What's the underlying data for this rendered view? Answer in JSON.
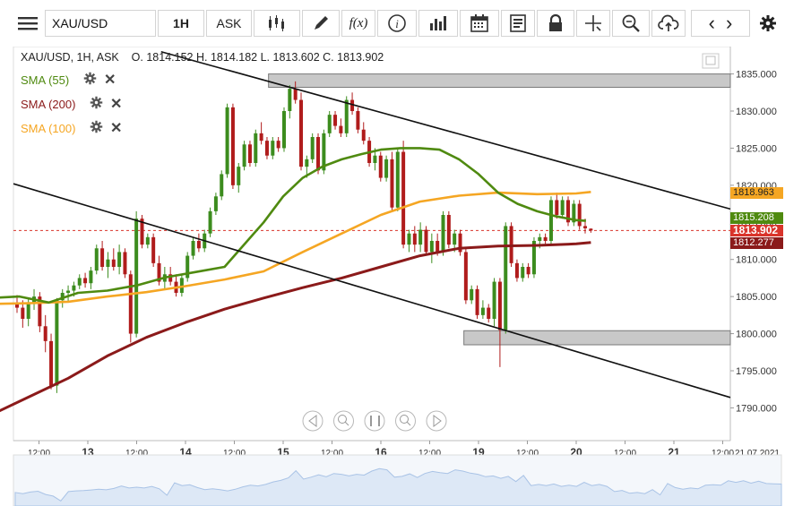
{
  "toolbar": {
    "symbol": "XAU/USD",
    "timeframe": "1H",
    "price_side": "ASK"
  },
  "header": {
    "pair": "XAU/USD, 1H, ASK",
    "open_label": "O.",
    "open": "1814.152",
    "high_label": "H.",
    "high": "1814.182",
    "low_label": "L.",
    "low": "1813.602",
    "close_label": "C.",
    "close": "1813.902"
  },
  "indicators": [
    {
      "label": "SMA (55)",
      "color": "#4f8a10"
    },
    {
      "label": "SMA (200)",
      "color": "#8b1a1a"
    },
    {
      "label": "SMA (100)",
      "color": "#f5a623"
    }
  ],
  "price_tags": [
    {
      "value": "1818.963",
      "color": "#f5a623",
      "text_color": "#222222"
    },
    {
      "value": "1815.208",
      "color": "#4f8a10",
      "text_color": "#ffffff"
    },
    {
      "value": "1813.902",
      "color": "#d9342b",
      "text_color": "#ffffff"
    },
    {
      "value": "1812.277",
      "color": "#8b1a1a",
      "text_color": "#ffffff"
    }
  ],
  "chart_data": {
    "type": "candlestick",
    "ylim": [
      1788,
      1837
    ],
    "y_ticks": [
      "1835.000",
      "1830.000",
      "1825.000",
      "1820.000",
      "1815.000",
      "1810.000",
      "1805.000",
      "1800.000",
      "1795.000",
      "1790.000"
    ],
    "y_tick_values": [
      1835,
      1830,
      1825,
      1820,
      1815,
      1810,
      1805,
      1800,
      1795,
      1790
    ],
    "x_ticks": [
      "12:00",
      "13",
      "12:00",
      "14",
      "12:00",
      "15",
      "12:00",
      "16",
      "12:00",
      "19",
      "12:00",
      "20",
      "12:00",
      "21",
      "12:00"
    ],
    "x_tick_positions": [
      0.5,
      1,
      1.5,
      2,
      2.5,
      3,
      3.5,
      4,
      4.5,
      5,
      5.5,
      6,
      6.5,
      7,
      7.5
    ],
    "date_label": "21.07.2021",
    "candle_color_up": "#3c8c1e",
    "candle_color_down": "#b01c1c",
    "current_price": 1813.902,
    "resistance_zones": [
      {
        "from_x": 2.85,
        "to_x": 7.6,
        "low": 1833.2,
        "high": 1835.0
      },
      {
        "from_x": 4.85,
        "to_x": 7.6,
        "low": 1798.5,
        "high": 1800.4
      }
    ],
    "trendlines": [
      {
        "x1": 1.75,
        "y1": 1838.0,
        "x2": 7.6,
        "y2": 1816.8
      },
      {
        "x1": -0.1,
        "y1": 1820.2,
        "x2": 7.6,
        "y2": 1791.4
      }
    ],
    "sma55": [
      [
        0,
        1804.8
      ],
      [
        0.3,
        1805
      ],
      [
        0.6,
        1804.2
      ],
      [
        0.9,
        1805.5
      ],
      [
        1.2,
        1805.8
      ],
      [
        1.5,
        1806.5
      ],
      [
        1.8,
        1807.6
      ],
      [
        2.1,
        1808.3
      ],
      [
        2.4,
        1809
      ],
      [
        2.6,
        1812
      ],
      [
        2.8,
        1815
      ],
      [
        3.0,
        1818.5
      ],
      [
        3.2,
        1821
      ],
      [
        3.4,
        1822.5
      ],
      [
        3.6,
        1823.5
      ],
      [
        3.8,
        1824.2
      ],
      [
        4.0,
        1824.8
      ],
      [
        4.2,
        1825
      ],
      [
        4.4,
        1825
      ],
      [
        4.6,
        1824.8
      ],
      [
        4.8,
        1823.5
      ],
      [
        5.0,
        1821.5
      ],
      [
        5.2,
        1819
      ],
      [
        5.4,
        1817.5
      ],
      [
        5.6,
        1816.5
      ],
      [
        5.8,
        1815.8
      ],
      [
        6.0,
        1815.3
      ],
      [
        6.1,
        1815.2
      ]
    ],
    "sma100": [
      [
        0,
        1804
      ],
      [
        0.4,
        1804.1
      ],
      [
        0.8,
        1804.3
      ],
      [
        1.2,
        1805
      ],
      [
        1.6,
        1805.6
      ],
      [
        2.0,
        1806.4
      ],
      [
        2.4,
        1807.3
      ],
      [
        2.8,
        1808.4
      ],
      [
        3.0,
        1809.7
      ],
      [
        3.2,
        1811
      ],
      [
        3.6,
        1813.5
      ],
      [
        4.0,
        1816
      ],
      [
        4.4,
        1817.8
      ],
      [
        4.8,
        1818.6
      ],
      [
        5.2,
        1819
      ],
      [
        5.6,
        1818.8
      ],
      [
        6.0,
        1818.9
      ],
      [
        6.15,
        1819.1
      ]
    ],
    "sma200": [
      [
        0,
        1789
      ],
      [
        0.4,
        1791.5
      ],
      [
        0.8,
        1794
      ],
      [
        1.2,
        1797
      ],
      [
        1.6,
        1799.5
      ],
      [
        2.0,
        1801.5
      ],
      [
        2.4,
        1803.3
      ],
      [
        2.8,
        1804.8
      ],
      [
        3.2,
        1806.2
      ],
      [
        3.6,
        1807.5
      ],
      [
        4.0,
        1809
      ],
      [
        4.4,
        1810.5
      ],
      [
        4.8,
        1811.5
      ],
      [
        5.2,
        1811.8
      ],
      [
        5.6,
        1811.9
      ],
      [
        6.0,
        1812.1
      ],
      [
        6.15,
        1812.3
      ]
    ],
    "candles": [
      [
        1804.0,
        1805.2,
        1802.8,
        1803.5
      ],
      [
        1803.5,
        1804.5,
        1800.8,
        1802.0
      ],
      [
        1802.0,
        1804.8,
        1801.0,
        1804.0
      ],
      [
        1804.0,
        1806.0,
        1803.2,
        1805.0
      ],
      [
        1805.0,
        1805.6,
        1800.2,
        1801.0
      ],
      [
        1801.0,
        1802.5,
        1797.5,
        1799.0
      ],
      [
        1799.0,
        1800.0,
        1792.5,
        1793.0
      ],
      [
        1793.0,
        1804.8,
        1792.0,
        1804.5
      ],
      [
        1804.5,
        1806.0,
        1803.5,
        1805.5
      ],
      [
        1805.5,
        1806.5,
        1804.2,
        1805.8
      ],
      [
        1805.8,
        1807.0,
        1805.0,
        1806.5
      ],
      [
        1806.5,
        1808.0,
        1806.0,
        1807.5
      ],
      [
        1807.5,
        1808.2,
        1806.2,
        1806.8
      ],
      [
        1806.8,
        1809.0,
        1806.0,
        1808.5
      ],
      [
        1808.5,
        1812.0,
        1808.0,
        1811.5
      ],
      [
        1811.5,
        1812.5,
        1808.5,
        1809.0
      ],
      [
        1809.0,
        1811.0,
        1807.5,
        1810.0
      ],
      [
        1810.0,
        1811.5,
        1808.5,
        1809.0
      ],
      [
        1809.0,
        1812.0,
        1808.0,
        1811.0
      ],
      [
        1811.0,
        1811.5,
        1807.5,
        1808.0
      ],
      [
        1808.0,
        1808.5,
        1798.8,
        1800.0
      ],
      [
        1800.0,
        1816.5,
        1799.5,
        1815.5
      ],
      [
        1815.5,
        1816.0,
        1811.5,
        1812.0
      ],
      [
        1812.0,
        1813.5,
        1811.5,
        1813.0
      ],
      [
        1813.0,
        1813.5,
        1809.0,
        1809.5
      ],
      [
        1809.5,
        1810.5,
        1806.5,
        1807.0
      ],
      [
        1807.0,
        1809.0,
        1806.0,
        1808.0
      ],
      [
        1808.0,
        1809.0,
        1806.5,
        1807.0
      ],
      [
        1807.0,
        1808.0,
        1805.0,
        1805.5
      ],
      [
        1805.5,
        1808.0,
        1805.0,
        1807.5
      ],
      [
        1807.5,
        1811.0,
        1807.0,
        1810.5
      ],
      [
        1810.5,
        1813.0,
        1810.0,
        1812.5
      ],
      [
        1812.5,
        1813.5,
        1811.0,
        1811.5
      ],
      [
        1811.5,
        1814.0,
        1811.0,
        1813.5
      ],
      [
        1813.5,
        1817.0,
        1813.0,
        1816.5
      ],
      [
        1816.5,
        1819.0,
        1816.0,
        1818.5
      ],
      [
        1818.5,
        1822.0,
        1818.0,
        1821.5
      ],
      [
        1821.5,
        1831.0,
        1821.0,
        1830.5
      ],
      [
        1830.5,
        1831.0,
        1819.5,
        1820.0
      ],
      [
        1820.0,
        1823.0,
        1819.0,
        1822.5
      ],
      [
        1822.5,
        1826.0,
        1822.0,
        1825.5
      ],
      [
        1825.5,
        1826.0,
        1822.5,
        1823.0
      ],
      [
        1823.0,
        1827.5,
        1822.5,
        1827.0
      ],
      [
        1827.0,
        1828.5,
        1825.5,
        1826.0
      ],
      [
        1826.0,
        1826.5,
        1823.5,
        1824.0
      ],
      [
        1824.0,
        1826.5,
        1823.5,
        1826.0
      ],
      [
        1826.0,
        1826.5,
        1824.5,
        1825.0
      ],
      [
        1825.0,
        1830.5,
        1824.5,
        1830.0
      ],
      [
        1830.0,
        1833.5,
        1829.0,
        1833.0
      ],
      [
        1833.0,
        1834.0,
        1831.0,
        1831.5
      ],
      [
        1831.5,
        1832.5,
        1822.0,
        1822.5
      ],
      [
        1822.5,
        1824.0,
        1821.0,
        1823.5
      ],
      [
        1823.5,
        1827.0,
        1823.0,
        1826.5
      ],
      [
        1826.5,
        1827.0,
        1821.5,
        1822.0
      ],
      [
        1822.0,
        1827.5,
        1821.5,
        1827.0
      ],
      [
        1827.0,
        1830.0,
        1826.5,
        1829.5
      ],
      [
        1829.5,
        1830.0,
        1827.5,
        1828.0
      ],
      [
        1828.0,
        1829.0,
        1826.5,
        1827.0
      ],
      [
        1827.0,
        1832.0,
        1826.5,
        1831.5
      ],
      [
        1831.5,
        1832.5,
        1829.5,
        1830.0
      ],
      [
        1830.0,
        1830.5,
        1827.0,
        1827.5
      ],
      [
        1827.5,
        1828.5,
        1825.5,
        1826.0
      ],
      [
        1826.0,
        1826.5,
        1822.5,
        1823.0
      ],
      [
        1823.0,
        1825.0,
        1822.0,
        1824.0
      ],
      [
        1824.0,
        1824.5,
        1820.5,
        1821.0
      ],
      [
        1821.0,
        1824.0,
        1820.5,
        1823.5
      ],
      [
        1823.5,
        1824.5,
        1816.5,
        1817.0
      ],
      [
        1817.0,
        1825.0,
        1816.5,
        1824.5
      ],
      [
        1824.5,
        1826.0,
        1811.5,
        1812.0
      ],
      [
        1812.0,
        1814.0,
        1811.0,
        1813.5
      ],
      [
        1813.5,
        1814.5,
        1811.0,
        1812.0
      ],
      [
        1812.0,
        1815.0,
        1811.0,
        1814.0
      ],
      [
        1814.0,
        1814.5,
        1810.5,
        1811.0
      ],
      [
        1811.0,
        1813.5,
        1809.5,
        1812.5
      ],
      [
        1812.5,
        1813.5,
        1810.5,
        1811.0
      ],
      [
        1811.0,
        1816.5,
        1810.5,
        1816.0
      ],
      [
        1816.0,
        1816.5,
        1811.5,
        1812.0
      ],
      [
        1812.0,
        1814.0,
        1811.0,
        1813.5
      ],
      [
        1813.5,
        1814.0,
        1810.5,
        1811.0
      ],
      [
        1811.0,
        1811.5,
        1804.0,
        1804.5
      ],
      [
        1804.5,
        1806.5,
        1804.0,
        1806.0
      ],
      [
        1806.0,
        1806.5,
        1802.0,
        1802.5
      ],
      [
        1802.5,
        1804.5,
        1802.0,
        1803.5
      ],
      [
        1803.5,
        1804.0,
        1801.5,
        1802.0
      ],
      [
        1802.0,
        1807.5,
        1801.0,
        1807.0
      ],
      [
        1807.0,
        1807.5,
        1795.5,
        1800.5
      ],
      [
        1800.5,
        1815.0,
        1800.0,
        1814.5
      ],
      [
        1814.5,
        1815.0,
        1809.0,
        1809.5
      ],
      [
        1809.5,
        1810.0,
        1807.0,
        1807.5
      ],
      [
        1807.5,
        1809.5,
        1807.0,
        1809.0
      ],
      [
        1809.0,
        1809.5,
        1807.5,
        1808.0
      ],
      [
        1808.0,
        1813.0,
        1807.5,
        1812.5
      ],
      [
        1812.5,
        1813.5,
        1811.5,
        1813.0
      ],
      [
        1813.0,
        1813.5,
        1812.0,
        1812.5
      ],
      [
        1812.5,
        1818.5,
        1812.0,
        1818.0
      ],
      [
        1818.0,
        1819.0,
        1815.5,
        1816.0
      ],
      [
        1816.0,
        1818.5,
        1815.5,
        1818.0
      ],
      [
        1818.0,
        1818.5,
        1814.5,
        1815.0
      ],
      [
        1815.0,
        1818.0,
        1814.5,
        1817.5
      ],
      [
        1817.5,
        1818.0,
        1814.0,
        1814.5
      ],
      [
        1814.5,
        1815.5,
        1813.5,
        1814.2
      ],
      [
        1814.152,
        1814.182,
        1813.602,
        1813.902
      ]
    ]
  }
}
